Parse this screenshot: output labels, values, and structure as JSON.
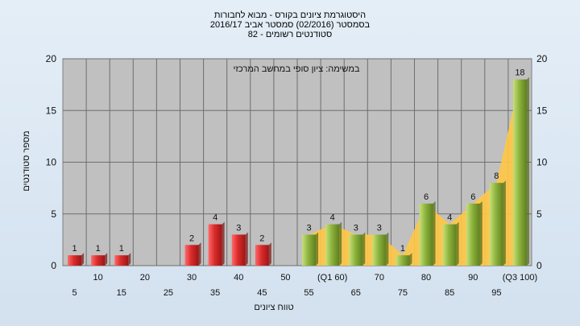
{
  "title_lines": [
    "היסטוגרמת ציונים בקורס - מבוא לחבורות",
    "בסמסטר  (02/2016)  סמסטר אביב 2016/17",
    "82 - סטודנטים רשומים"
  ],
  "chart_data": {
    "type": "bar",
    "title": "היסטוגרמת ציונים בקורס - מבוא לחבורות",
    "subtitle": "בסמסטר  (02/2016)  סמסטר אביב 2016/17 | 82 - סטודנטים רשומים",
    "annotation": "במשימה: ציון סופי במחשב המרכזי",
    "xlabel": "טווח ציונים",
    "ylabel": "מספר סטודנטים",
    "ylim": [
      0,
      20
    ],
    "yticks": [
      0,
      5,
      10,
      15,
      20
    ],
    "grid": true,
    "categories": [
      "5",
      "10",
      "15",
      "20",
      "25",
      "30",
      "35",
      "40",
      "45",
      "50",
      "55",
      "(Q1 60)",
      "65",
      "70",
      "75",
      "80",
      "85",
      "90",
      "95",
      "(Q3 100)"
    ],
    "values": [
      1,
      1,
      1,
      0,
      0,
      2,
      4,
      3,
      2,
      0,
      3,
      4,
      3,
      3,
      1,
      6,
      4,
      6,
      8,
      18
    ],
    "bar_labels": [
      "1",
      "1",
      "1",
      "",
      "",
      "2",
      "4",
      "3",
      "2",
      "",
      "3",
      "4",
      "3",
      "3",
      "1",
      "6",
      "4",
      "6",
      "8",
      "18"
    ],
    "colors": {
      "fail_bar": "#d92b2b",
      "pass_bar": "#8db33c",
      "area": "#ffc845",
      "plot_bg": "#c0c0c0"
    }
  }
}
